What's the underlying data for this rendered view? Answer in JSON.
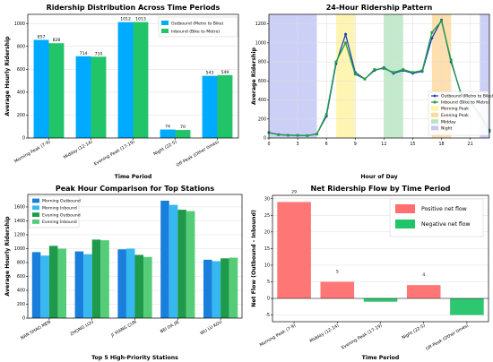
{
  "chart_data": [
    {
      "type": "bar",
      "title": "Ridership Distribution Across Time Periods",
      "xlabel": "Time Period",
      "ylabel": "Average Hourly Ridership",
      "categories": [
        "Morning Peak (7-9)",
        "Midday (12-14)",
        "Evening Peak (17-19)",
        "Night (22-5)",
        "Off-Peak (Other times)"
      ],
      "series": [
        {
          "name": "Outbound (Metro to Bike)",
          "values": [
            857,
            714,
            1012,
            74,
            543
          ],
          "color": "#00aaff"
        },
        {
          "name": "Inbound (Bike to Metro)",
          "values": [
            828,
            710,
            1013,
            70,
            549
          ],
          "color": "#22c46a"
        }
      ],
      "data_labels": [
        [
          "857",
          "714",
          "1012",
          "74",
          "543"
        ],
        [
          "828",
          "710",
          "1013",
          "70",
          "549"
        ]
      ],
      "ylim": [
        0,
        1080
      ],
      "yticks": [
        0,
        200,
        400,
        600,
        800,
        1000
      ],
      "legend_position": "top-right",
      "grid": true
    },
    {
      "type": "line",
      "title": "24-Hour Ridership Pattern",
      "xlabel": "Hour of Day",
      "ylabel": "Average Ridership",
      "x": [
        0,
        1,
        2,
        3,
        4,
        5,
        6,
        7,
        8,
        9,
        10,
        11,
        12,
        13,
        14,
        15,
        16,
        17,
        18,
        19,
        20,
        21,
        22,
        23
      ],
      "series": [
        {
          "name": "Outbound (Metro to Bike)",
          "values": [
            58,
            36,
            30,
            28,
            26,
            42,
            230,
            780,
            1090,
            690,
            620,
            710,
            740,
            680,
            710,
            680,
            700,
            1050,
            1240,
            800,
            480,
            380,
            250,
            80
          ],
          "color": "#1f3fbf",
          "marker": "circle"
        },
        {
          "name": "Inbound (Bike to Metro)",
          "values": [
            56,
            34,
            28,
            26,
            24,
            40,
            250,
            800,
            1000,
            670,
            620,
            720,
            730,
            690,
            720,
            690,
            710,
            1110,
            1230,
            820,
            470,
            370,
            240,
            70
          ],
          "color": "#22a040",
          "marker": "square"
        }
      ],
      "bands": [
        {
          "name": "Morning Peak",
          "from": 7,
          "to": 9,
          "color": "#fff3a6"
        },
        {
          "name": "Evening Peak",
          "from": 17,
          "to": 19,
          "color": "#ffd9a0"
        },
        {
          "name": "Midday",
          "from": 12,
          "to": 14,
          "color": "#b8e6c4"
        },
        {
          "name": "Night",
          "from": 0,
          "to": 5,
          "color": "#c4c8f4"
        },
        {
          "name": "",
          "from": 22,
          "to": 23,
          "color": "#c4c8f4"
        }
      ],
      "xlim": [
        0,
        23
      ],
      "xticks": [
        0,
        3,
        6,
        9,
        12,
        15,
        18,
        21
      ],
      "ylim": [
        0,
        1300
      ],
      "yticks": [
        0,
        200,
        400,
        600,
        800,
        1000,
        1200
      ],
      "legend_position": "center-right",
      "grid": true
    },
    {
      "type": "bar",
      "title": "Peak Hour Comparison for Top Stations",
      "xlabel": "Top 5 High-Priority Stations",
      "ylabel": "Average Hourly Ridership",
      "categories": [
        "NAN SHAO MEN",
        "ZHONG LOU",
        "JI XIANG CUN",
        "BEI DA JIE",
        "WU LU KOU"
      ],
      "series": [
        {
          "name": "Morning Outbound",
          "values": [
            950,
            960,
            990,
            1690,
            840
          ],
          "color": "#1a7fdc"
        },
        {
          "name": "Morning Inbound",
          "values": [
            900,
            920,
            1000,
            1630,
            820
          ],
          "color": "#37b8f0"
        },
        {
          "name": "Evening Outbound",
          "values": [
            1040,
            1130,
            910,
            1560,
            860
          ],
          "color": "#1f9a4a"
        },
        {
          "name": "Evening Inbound",
          "values": [
            1000,
            1120,
            880,
            1540,
            870
          ],
          "color": "#55cc77"
        }
      ],
      "ylim": [
        0,
        1780
      ],
      "yticks": [
        0,
        200,
        400,
        600,
        800,
        1000,
        1200,
        1400,
        1600
      ],
      "legend_position": "top-left",
      "grid": true
    },
    {
      "type": "bar",
      "title": "Net Ridership Flow by Time Period",
      "xlabel": "Time Period",
      "ylabel": "Net Flow (Outbound - Inbound)",
      "categories": [
        "Morning Peak (7-9)",
        "Midday (12-14)",
        "Evening Peak (17-19)",
        "Night (22-5)",
        "Off-Peak (Other times)"
      ],
      "values": [
        29,
        5,
        -1,
        4,
        -5
      ],
      "data_labels": [
        "29",
        "5",
        "",
        "4",
        ""
      ],
      "colors": [
        "#ff6f6f",
        "#ff6f6f",
        "#22c46a",
        "#ff6f6f",
        "#22c46a"
      ],
      "legend": [
        {
          "name": "Positive net flow",
          "color": "#ff6f6f"
        },
        {
          "name": "Negative net flow",
          "color": "#22c46a"
        }
      ],
      "ylim": [
        -7,
        31
      ],
      "yticks": [
        -5,
        0,
        5,
        10,
        15,
        20,
        25,
        30
      ],
      "legend_position": "top-right",
      "grid": true
    }
  ]
}
